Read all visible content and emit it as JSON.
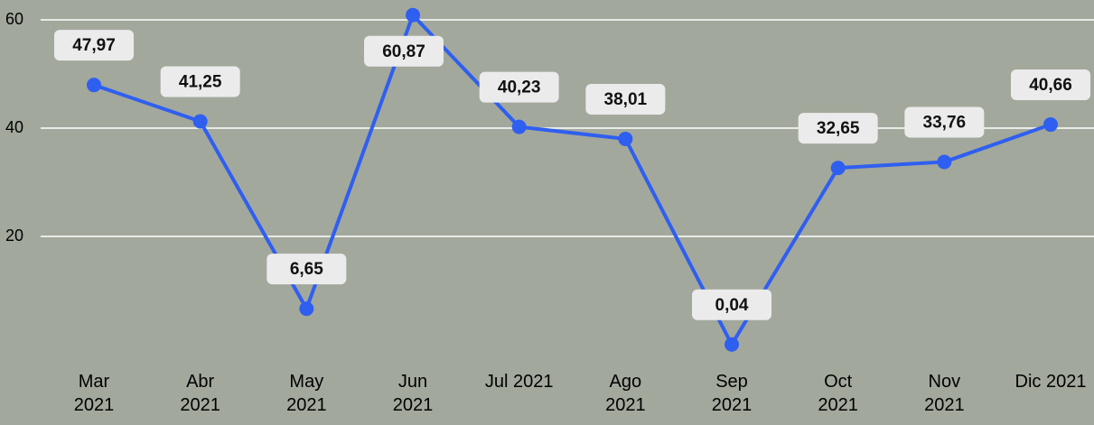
{
  "chart_data": {
    "type": "line",
    "categories": [
      "Mar 2021",
      "Abr 2021",
      "May 2021",
      "Jun 2021",
      "Jul 2021",
      "Ago 2021",
      "Sep 2021",
      "Oct 2021",
      "Nov 2021",
      "Dic 2021"
    ],
    "series": [
      {
        "color": "#2f5ff0",
        "values": [
          47.97,
          41.25,
          6.65,
          60.87,
          40.23,
          38.01,
          0.04,
          32.65,
          33.76,
          40.66
        ],
        "value_labels": [
          "47,97",
          "41,25",
          "6,65",
          "60,87",
          "40,23",
          "38,01",
          "0,04",
          "32,65",
          "33,76",
          "40,66"
        ]
      }
    ],
    "ylim": [
      0,
      60
    ],
    "yticks": [
      20,
      40,
      60
    ],
    "grid": true
  }
}
